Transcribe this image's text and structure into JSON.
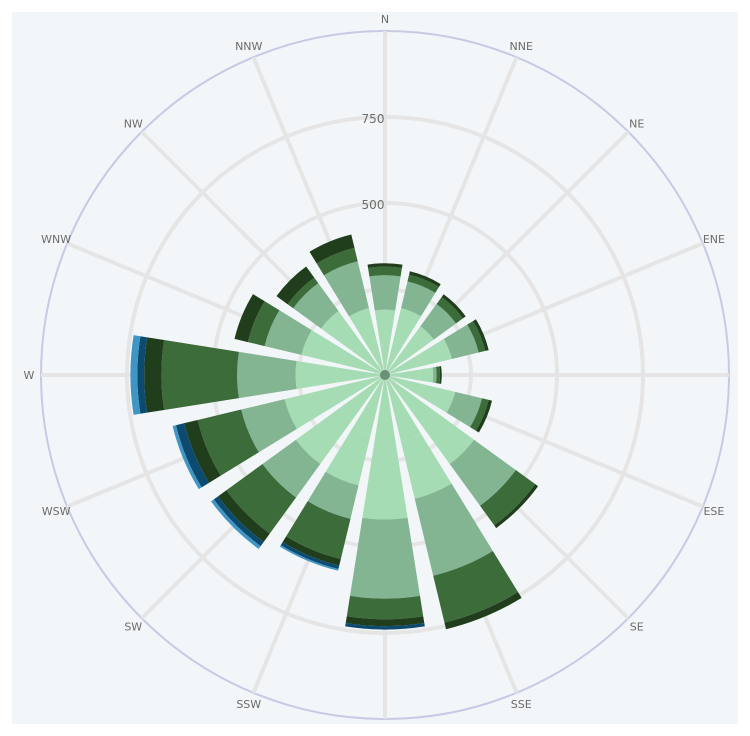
{
  "chart_data": {
    "type": "polar-bar",
    "subtype": "wind-rose",
    "stacked": true,
    "directions": [
      "N",
      "NNE",
      "NE",
      "ENE",
      "E",
      "ESE",
      "SE",
      "SSE",
      "S",
      "SSW",
      "SW",
      "WSW",
      "W",
      "WNW",
      "NW",
      "NNW"
    ],
    "radial_ticks": [
      "500",
      "750"
    ],
    "radial_tick_values": [
      500,
      750
    ],
    "radial_max": 1000,
    "grid": true,
    "legend": "none",
    "series": [
      {
        "color": "#a6dcb4",
        "values": [
          90,
          100,
          95,
          110,
          100,
          110,
          170,
          200,
          250,
          180,
          160,
          150,
          140,
          130,
          120,
          100
        ]
      },
      {
        "color": "#a6dcb4",
        "values": [
          100,
          100,
          80,
          90,
          40,
          100,
          150,
          170,
          170,
          150,
          160,
          150,
          120,
          120,
          110,
          100
        ]
      },
      {
        "color": "#83b593",
        "values": [
          100,
          80,
          80,
          80,
          10,
          80,
          150,
          230,
          230,
          100,
          120,
          130,
          170,
          110,
          100,
          140
        ]
      },
      {
        "color": "#3c6c3a",
        "values": [
          25,
          20,
          25,
          20,
          10,
          20,
          70,
          140,
          60,
          120,
          130,
          130,
          220,
          50,
          20,
          40
        ]
      },
      {
        "color": "#203e1c",
        "values": [
          10,
          10,
          10,
          10,
          5,
          10,
          10,
          20,
          20,
          20,
          30,
          40,
          50,
          40,
          40,
          40
        ]
      },
      {
        "color": "#0c4a70",
        "values": [
          0,
          0,
          0,
          0,
          0,
          0,
          0,
          0,
          10,
          10,
          15,
          25,
          20,
          0,
          0,
          0
        ]
      },
      {
        "color": "#3f96c4",
        "values": [
          0,
          0,
          0,
          0,
          0,
          0,
          0,
          0,
          0,
          5,
          10,
          10,
          20,
          0,
          0,
          0
        ]
      }
    ],
    "colors": {
      "background": "#f3f6f8",
      "outer_ring": "#c7cae5",
      "grid": "#e5e5e5",
      "label": "#6b6b6b"
    }
  }
}
